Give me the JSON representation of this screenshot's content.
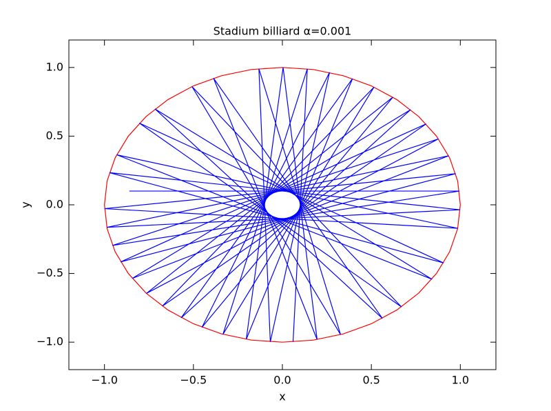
{
  "chart_data": {
    "type": "line",
    "title": "Stadium billiard α=0.001",
    "xlabel": "x",
    "ylabel": "y",
    "xlim": [
      -1.2,
      1.2
    ],
    "ylim": [
      -1.2,
      1.2
    ],
    "xticks": [
      {
        "value": -1,
        "label": "−1.0"
      },
      {
        "value": -0.5,
        "label": "−0.5"
      },
      {
        "value": 0,
        "label": "0.0"
      },
      {
        "value": 0.5,
        "label": "0.5"
      },
      {
        "value": 1,
        "label": "1.0"
      }
    ],
    "yticks": [
      {
        "value": -1,
        "label": "−1.0"
      },
      {
        "value": -0.5,
        "label": "−0.5"
      },
      {
        "value": 0,
        "label": "0.0"
      },
      {
        "value": 0.5,
        "label": "0.5"
      },
      {
        "value": 1,
        "label": "1.0"
      }
    ],
    "series": [
      {
        "color": "#ff0000",
        "x": [
          1,
          0.985,
          0.94,
          0.866,
          0.766,
          0.643,
          0.5,
          0.342,
          0.174,
          0,
          -0.174,
          -0.342,
          -0.5,
          -0.643,
          -0.766,
          -0.866,
          -0.94,
          -0.985,
          -1,
          -0.985,
          -0.94,
          -0.866,
          -0.766,
          -0.643,
          -0.5,
          -0.342,
          -0.174,
          0,
          0.174,
          0.342,
          0.5,
          0.643,
          0.766,
          0.866,
          0.94,
          0.985,
          1
        ],
        "y": [
          0,
          0.174,
          0.342,
          0.5,
          0.643,
          0.766,
          0.866,
          0.94,
          0.985,
          1,
          0.985,
          0.94,
          0.866,
          0.766,
          0.643,
          0.5,
          0.342,
          0.174,
          0,
          -0.174,
          -0.342,
          -0.5,
          -0.643,
          -0.766,
          -0.866,
          -0.94,
          -0.985,
          -1,
          -0.985,
          -0.94,
          -0.866,
          -0.766,
          -0.643,
          -0.5,
          -0.342,
          -0.174,
          0
        ]
      },
      {
        "color": "#0000ff",
        "x": [
          -0.86,
          0.995,
          -0.955,
          0.877,
          -0.764,
          0.621,
          -0.452,
          0.265,
          -0.068,
          -0.132,
          0.327,
          -0.508,
          0.669,
          -0.804,
          0.906,
          -0.972,
          0.999,
          -0.987,
          0.934,
          -0.844,
          0.721,
          -0.569,
          0.394,
          -0.203,
          0.004,
          0.195,
          -0.387,
          0.562,
          -0.716,
          0.841,
          -0.931,
          0.985,
          -1,
          0.974,
          -0.909,
          0.808,
          -0.675,
          0.515,
          -0.334,
          0.14,
          0.06
        ],
        "y": [
          0.1,
          0.1,
          -0.296,
          0.48,
          -0.645,
          0.784,
          -0.892,
          0.964,
          -0.998,
          0.991,
          -0.945,
          0.861,
          -0.743,
          0.595,
          -0.423,
          0.234,
          -0.036,
          -0.164,
          0.357,
          -0.536,
          0.693,
          -0.823,
          0.919,
          -0.979,
          1,
          -0.981,
          0.922,
          -0.827,
          0.698,
          -0.542,
          0.364,
          -0.171,
          -0.028,
          0.227,
          -0.416,
          0.589,
          -0.738,
          0.857,
          -0.943,
          0.99,
          -0.998
        ]
      }
    ]
  }
}
